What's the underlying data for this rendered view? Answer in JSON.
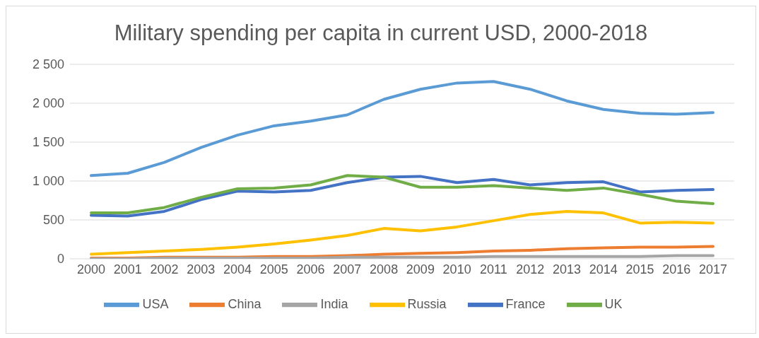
{
  "chart_data": {
    "type": "line",
    "title": "Military spending per capita in current USD, 2000-2018",
    "categories": [
      "2000",
      "2001",
      "2002",
      "2003",
      "2004",
      "2005",
      "2006",
      "2007",
      "2008",
      "2009",
      "2010",
      "2011",
      "2012",
      "2013",
      "2014",
      "2015",
      "2016",
      "2017"
    ],
    "series": [
      {
        "name": "USA",
        "color": "#5b9bd5",
        "values": [
          1070,
          1100,
          1240,
          1430,
          1590,
          1710,
          1770,
          1850,
          2050,
          2180,
          2260,
          2280,
          2180,
          2030,
          1920,
          1870,
          1860,
          1880
        ]
      },
      {
        "name": "China",
        "color": "#ed7d31",
        "values": [
          10,
          10,
          20,
          20,
          20,
          30,
          30,
          40,
          60,
          70,
          80,
          100,
          110,
          130,
          140,
          150,
          150,
          160
        ]
      },
      {
        "name": "India",
        "color": "#a5a5a5",
        "values": [
          0,
          0,
          10,
          10,
          10,
          10,
          10,
          20,
          20,
          20,
          20,
          30,
          30,
          30,
          30,
          30,
          40,
          40
        ]
      },
      {
        "name": "Russia",
        "color": "#ffc000",
        "values": [
          60,
          80,
          100,
          120,
          150,
          190,
          240,
          300,
          390,
          360,
          410,
          490,
          570,
          610,
          590,
          460,
          470,
          460
        ]
      },
      {
        "name": "France",
        "color": "#4472c4",
        "values": [
          560,
          550,
          610,
          760,
          870,
          860,
          880,
          980,
          1050,
          1060,
          980,
          1020,
          950,
          980,
          990,
          860,
          880,
          890
        ]
      },
      {
        "name": "UK",
        "color": "#70ad47",
        "values": [
          590,
          590,
          660,
          790,
          900,
          910,
          950,
          1070,
          1050,
          920,
          920,
          940,
          910,
          880,
          910,
          830,
          740,
          710
        ]
      }
    ],
    "ylim": [
      0,
      2500
    ],
    "yticks": [
      0,
      500,
      {
        "value": 1000,
        "label": "1 000"
      },
      {
        "value": 1500,
        "label": "1 500"
      },
      {
        "value": 2000,
        "label": "2 000"
      },
      {
        "value": 2500,
        "label": "2 500"
      }
    ],
    "grid": "y",
    "legend": "bottom",
    "marker": "none",
    "line_style": "solid"
  }
}
